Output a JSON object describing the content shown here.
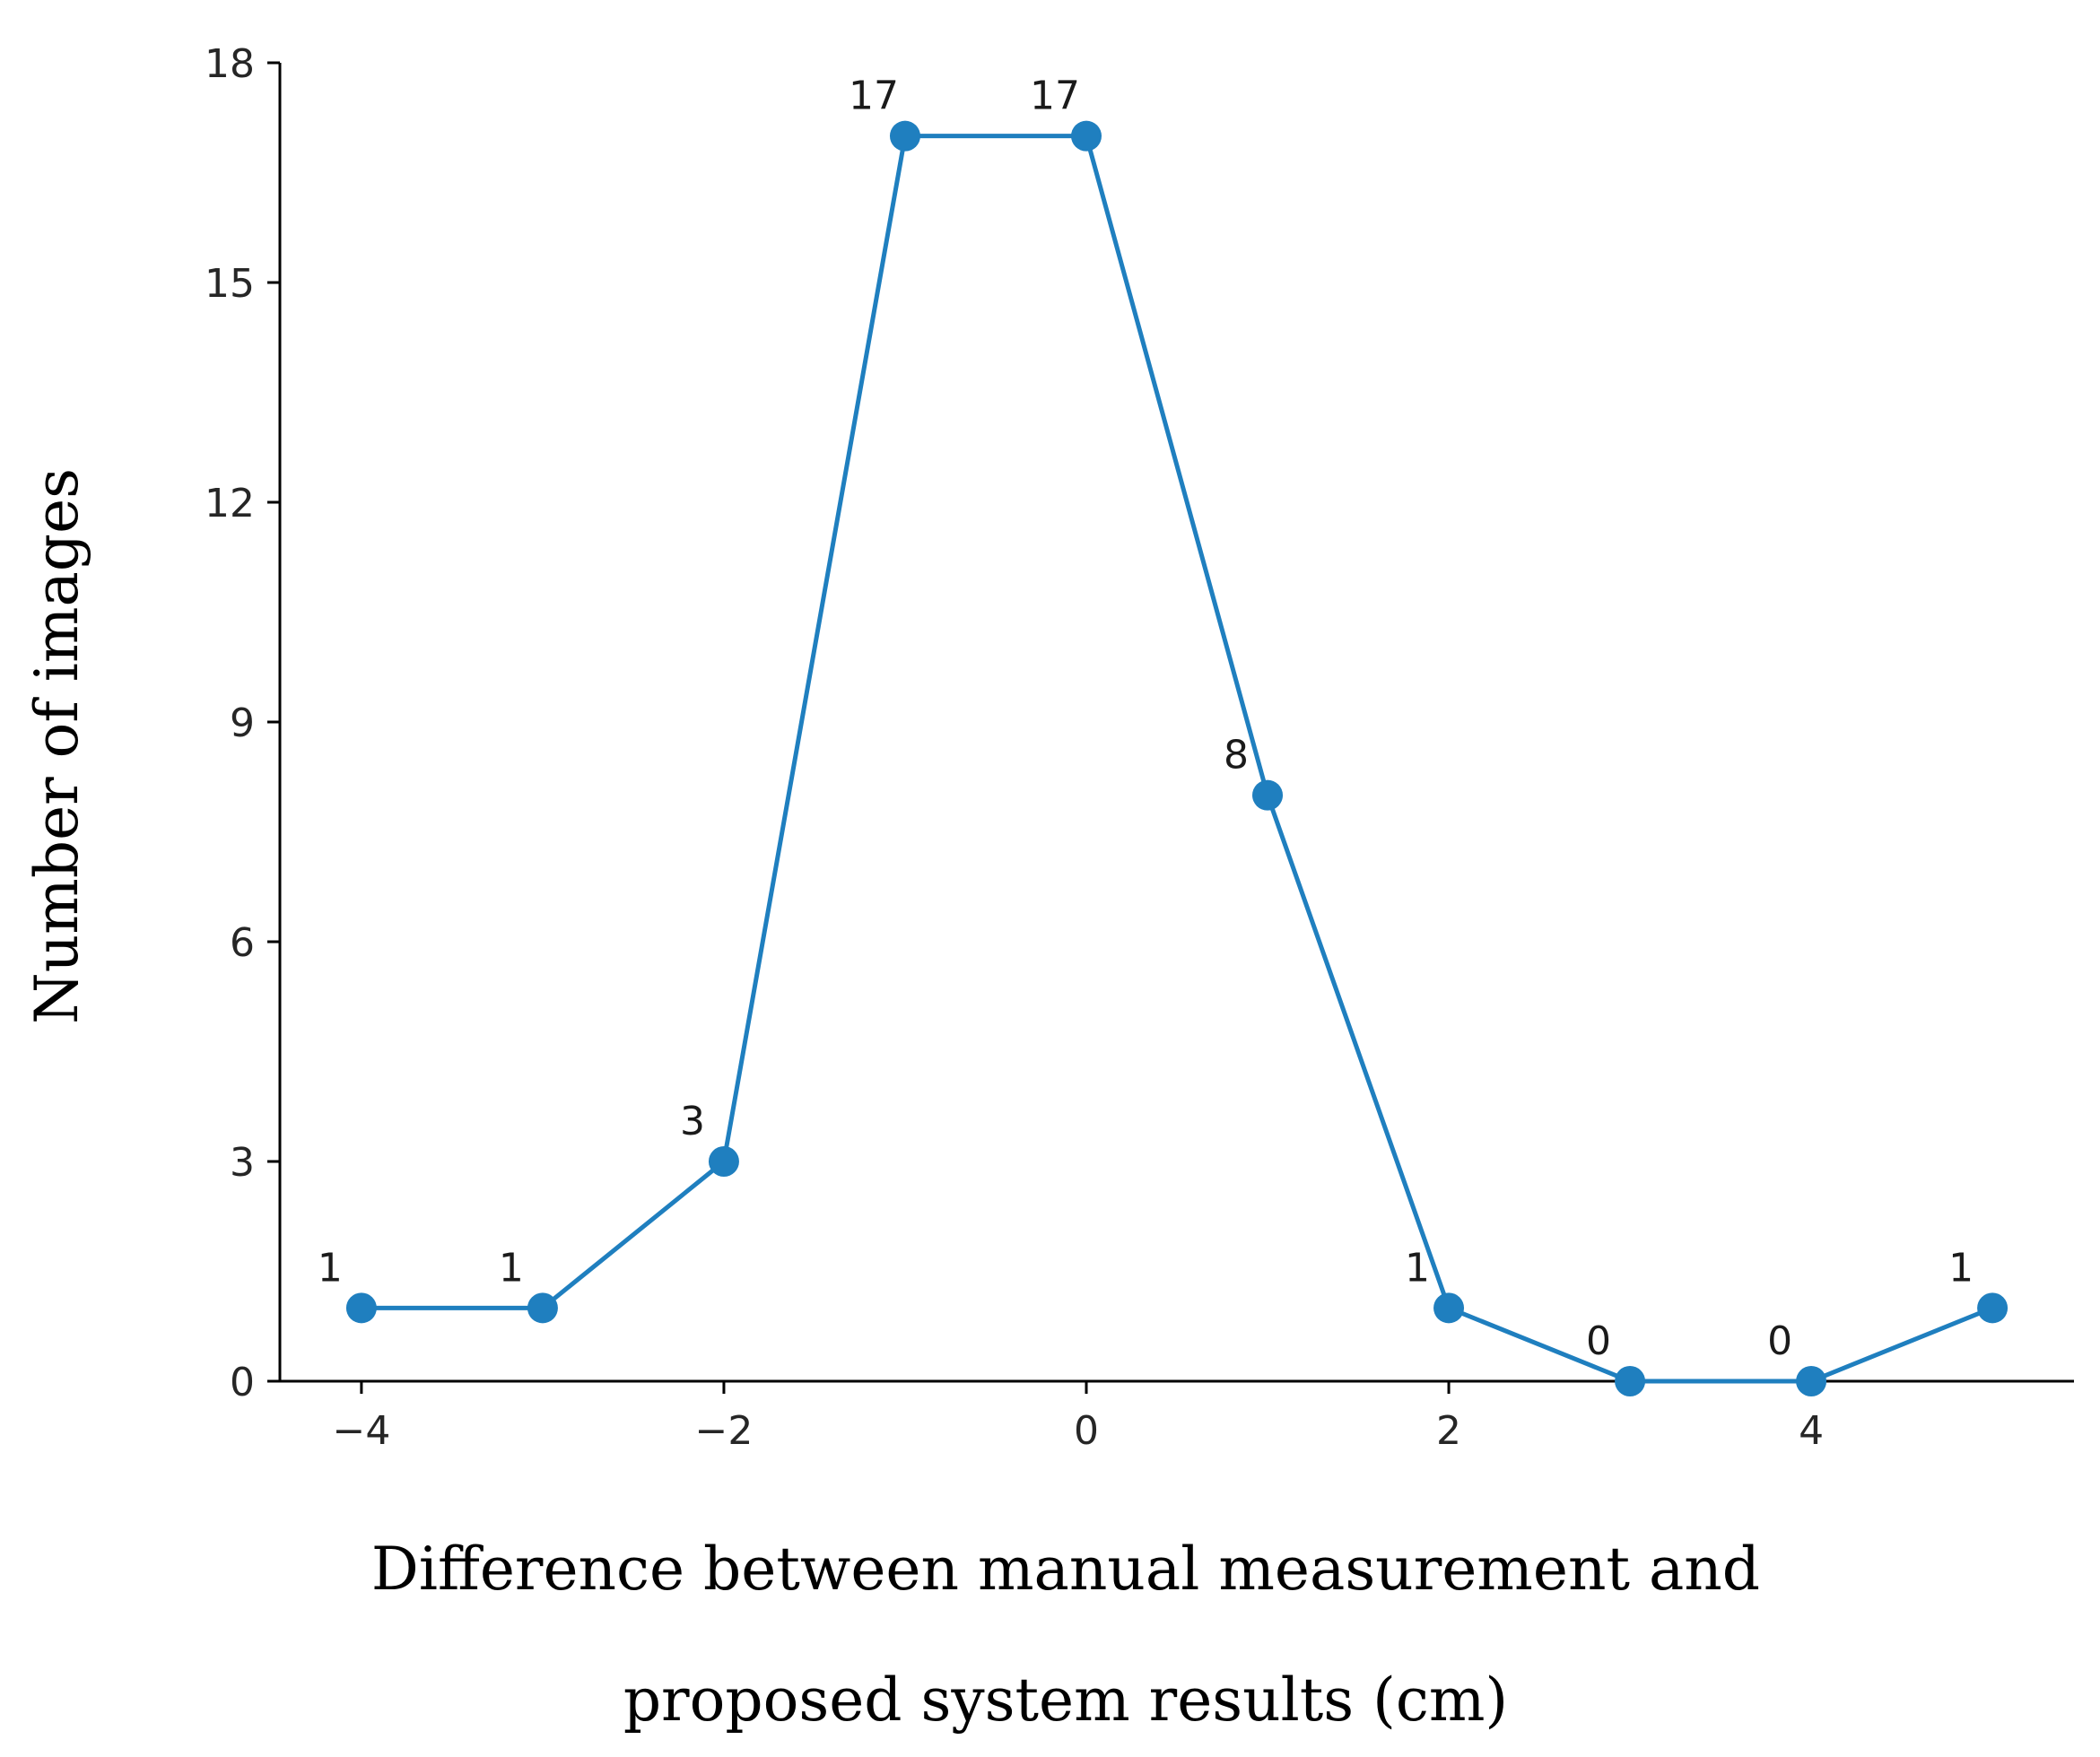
{
  "chart_data": {
    "type": "line",
    "title": "",
    "xlabel_lines": [
      "Difference between manual measurement and",
      "proposed system results (cm)"
    ],
    "ylabel": "Number of images",
    "x": [
      -4,
      -3,
      -2,
      -1,
      0,
      1,
      2,
      3,
      4,
      5
    ],
    "series": [
      {
        "name": "Number of images",
        "values": [
          1,
          1,
          3,
          17,
          17,
          8,
          1,
          0,
          0,
          1
        ]
      }
    ],
    "data_labels": [
      "1",
      "1",
      "3",
      "17",
      "17",
      "8",
      "1",
      "0",
      "0",
      "1"
    ],
    "xlim": [
      -4.45,
      5.45
    ],
    "ylim": [
      0,
      18
    ],
    "xticks": [
      -4,
      -2,
      0,
      2,
      4
    ],
    "xtick_labels": [
      "−4",
      "−2",
      "0",
      "2",
      "4"
    ],
    "yticks": [
      0,
      3,
      6,
      9,
      12,
      15,
      18
    ],
    "ytick_labels": [
      "0",
      "3",
      "6",
      "9",
      "12",
      "15",
      "18"
    ],
    "grid": false,
    "line_color": "#1f7fbf",
    "axis_color": "#000000"
  }
}
